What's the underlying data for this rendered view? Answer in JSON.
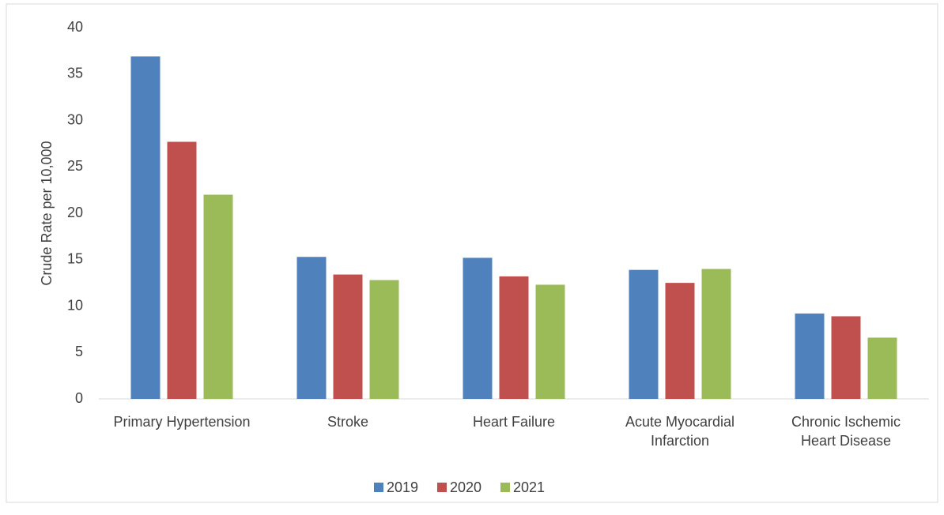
{
  "chart_data": {
    "type": "bar",
    "y_label": "Crude Rate per 10,000",
    "categories": [
      "Primary Hypertension",
      "Stroke",
      "Heart Failure",
      "Acute Myocardial Infarction",
      "Chronic Ischemic Heart Disease"
    ],
    "series": [
      {
        "name": "2019",
        "color": "#4f81bd",
        "values": [
          36.9,
          15.3,
          15.2,
          13.9,
          9.2
        ]
      },
      {
        "name": "2020",
        "color": "#c0504d",
        "values": [
          27.7,
          13.4,
          13.2,
          12.5,
          8.9
        ]
      },
      {
        "name": "2021",
        "color": "#9bbb59",
        "values": [
          22.0,
          12.8,
          12.3,
          14.0,
          6.6
        ]
      }
    ],
    "ylim": [
      0,
      40
    ],
    "yticks": [
      0,
      5,
      10,
      15,
      20,
      25,
      30,
      35,
      40
    ],
    "grid": false,
    "legend": "bottom"
  }
}
